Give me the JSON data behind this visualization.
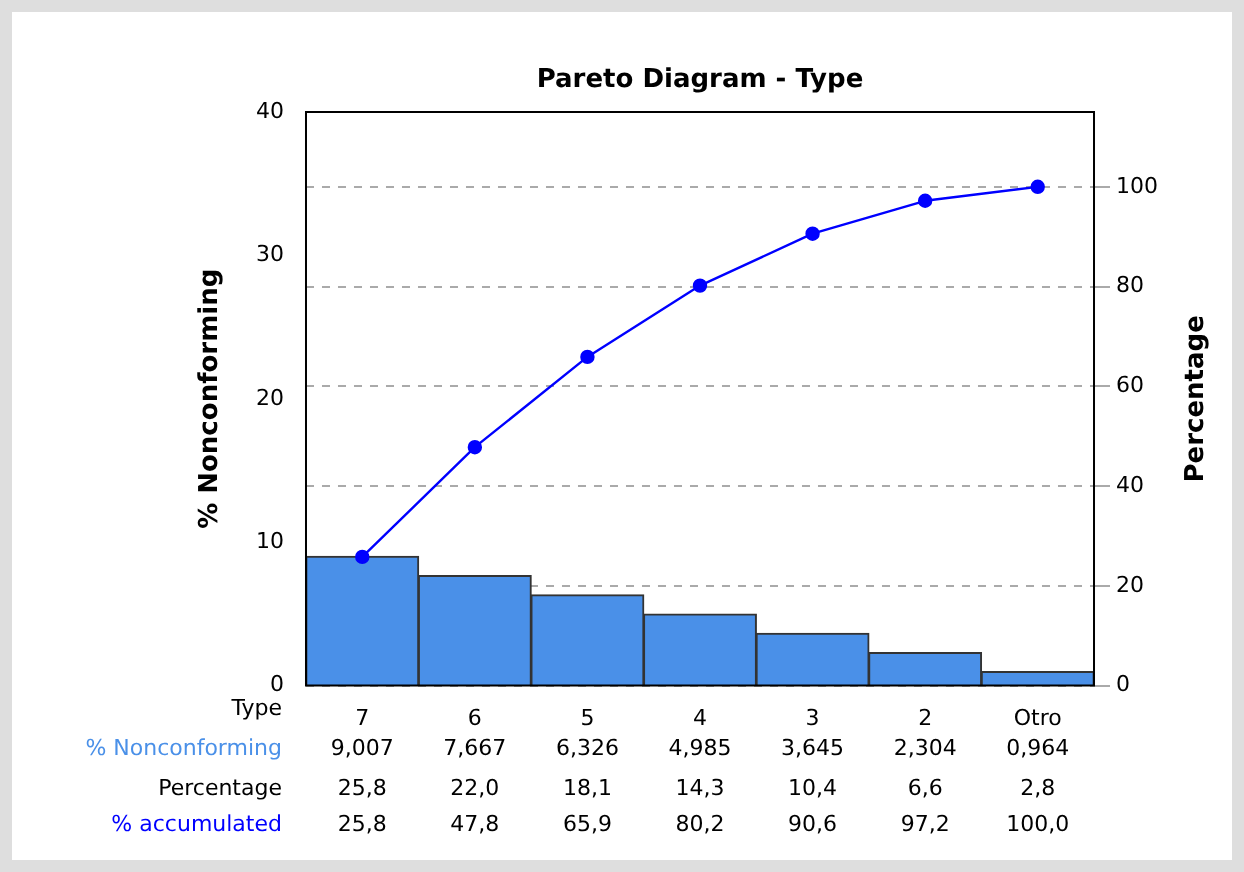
{
  "chart_data": {
    "type": "bar",
    "title": "Pareto Diagram - Type",
    "xlabel": "Type",
    "ylabel": "% Nonconforming",
    "y2label": "Percentage",
    "categories": [
      "7",
      "6",
      "5",
      "4",
      "3",
      "2",
      "Otro"
    ],
    "series": [
      {
        "name": "% Nonconforming",
        "color": "#4a90e8",
        "values": [
          9.007,
          7.667,
          6.326,
          4.985,
          3.645,
          2.304,
          0.964
        ],
        "value_labels": [
          "9,007",
          "7,667",
          "6,326",
          "4,985",
          "3,645",
          "2,304",
          "0,964"
        ]
      },
      {
        "name": "% accumulated",
        "type": "line",
        "axis": "y2",
        "color": "#0000ff",
        "marker": "circle",
        "values": [
          25.8,
          47.8,
          65.9,
          80.2,
          90.6,
          97.2,
          100.0
        ],
        "value_labels": [
          "25,8",
          "47,8",
          "65,9",
          "80,2",
          "90,6",
          "97,2",
          "100,0"
        ]
      }
    ],
    "annotations": [
      "Percentage",
      "25,8",
      "22,0",
      "18,1",
      "14,3",
      "10,4",
      "6,6",
      "2,8"
    ],
    "ylim": [
      0,
      40
    ],
    "yticks": [
      0,
      10,
      20,
      30,
      40
    ],
    "y2lim": [
      0,
      115
    ],
    "y2ticks": [
      0,
      20,
      40,
      60,
      80,
      100
    ],
    "grid": "y2",
    "legend": false
  }
}
